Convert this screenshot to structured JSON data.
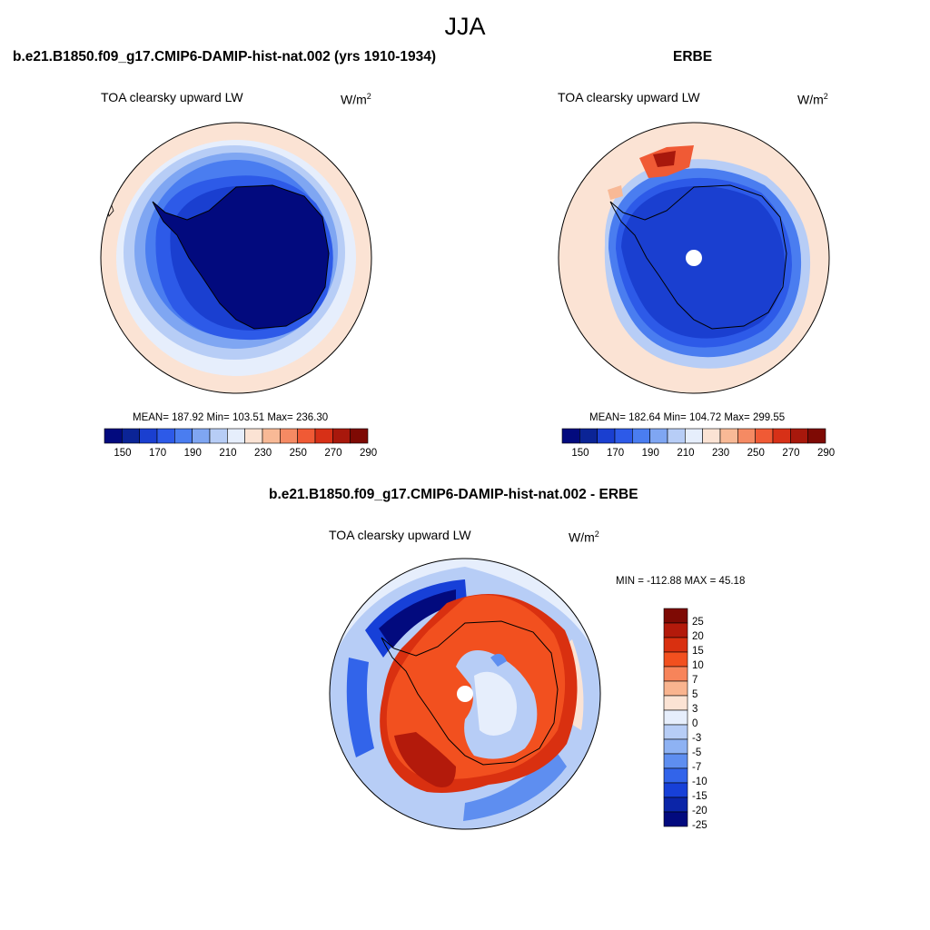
{
  "figure": {
    "title": "JJA"
  },
  "panels": [
    {
      "id": "model",
      "title": "b.e21.B1850.f09_g17.CMIP6-DAMIP-hist-nat.002 (yrs 1910-1934)",
      "variable": "TOA clearsky upward LW",
      "units_base": "W/m",
      "units_exp": "2",
      "stats": "MEAN= 187.92  Min= 103.51  Max= 236.30",
      "stats_values": {
        "mean": 187.92,
        "min": 103.51,
        "max": 236.3
      },
      "colorbar_ticks": [
        "150",
        "170",
        "190",
        "210",
        "230",
        "250",
        "270",
        "290"
      ]
    },
    {
      "id": "obs",
      "title": "ERBE",
      "variable": "TOA clearsky upward LW",
      "units_base": "W/m",
      "units_exp": "2",
      "stats": "MEAN= 182.64  Min= 104.72  Max= 299.55",
      "stats_values": {
        "mean": 182.64,
        "min": 104.72,
        "max": 299.55
      },
      "colorbar_ticks": [
        "150",
        "170",
        "190",
        "210",
        "230",
        "250",
        "270",
        "290"
      ]
    },
    {
      "id": "diff",
      "title": "b.e21.B1850.f09_g17.CMIP6-DAMIP-hist-nat.002 - ERBE",
      "variable": "TOA clearsky upward LW",
      "units_base": "W/m",
      "units_exp": "2",
      "stats": "MIN = -112.88 MAX =  45.18",
      "stats_values": {
        "min": -112.88,
        "max": 45.18
      },
      "colorbar_ticks": [
        "25",
        "20",
        "15",
        "10",
        "7",
        "5",
        "3",
        "0",
        "-3",
        "-5",
        "-7",
        "-10",
        "-15",
        "-20",
        "-25"
      ]
    }
  ],
  "colormaps": {
    "absolute": [
      "#020a7e",
      "#0b2496",
      "#1a3fd0",
      "#2d5ae8",
      "#4a7df0",
      "#7fa6f2",
      "#b7cdf6",
      "#e6eefc",
      "#fbe3d4",
      "#f8b996",
      "#f58a63",
      "#f05a35",
      "#d73017",
      "#a8180c",
      "#7e0a04"
    ],
    "difference": [
      "#7e0a04",
      "#b31a0b",
      "#d93010",
      "#f2501f",
      "#f7845a",
      "#f9b48f",
      "#fbe3d4",
      "#e6eefc",
      "#b7cdf6",
      "#8eb2f3",
      "#5e8ef0",
      "#3264ea",
      "#1740d8",
      "#0b25a8",
      "#020a7e"
    ]
  }
}
